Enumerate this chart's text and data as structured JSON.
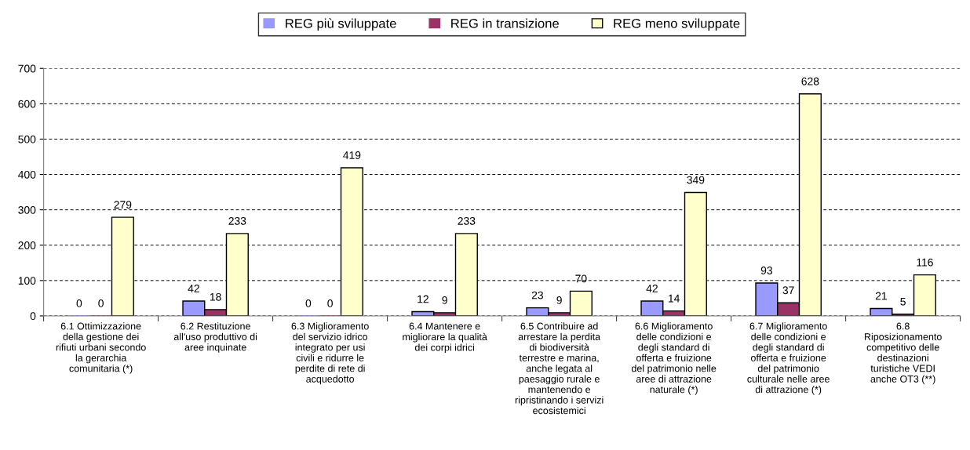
{
  "chart_data": {
    "type": "bar",
    "categories": [
      "6.1 Ottimizzazione\ndella gestione dei\nrifiuti urbani secondo\nla gerarchia\ncomunitaria (*)",
      "6.2 Restituzione\nall'uso produttivo di\naree inquinate",
      "6.3 Miglioramento\ndel servizio idrico\nintegrato per usi\ncivili e ridurre le\nperdite di rete di\nacquedotto",
      "6.4 Mantenere e\nmigliorare la qualità\ndei corpi idrici",
      "6.5 Contribuire ad\narrestare la perdita\ndi biodiversità\nterrestre e marina,\nanche legata al\npaesaggio rurale e\nmantenendo e\nripristinando i servizi\necosistemici",
      "6.6 Miglioramento\ndelle condizioni e\ndegli standard di\nofferta e fruizione\ndel patrimonio nelle\naree di attrazione\nnaturale (*)",
      "6.7 Miglioramento\ndelle condizioni e\ndegli standard di\nofferta e fruizione\ndel patrimonio\nculturale nelle aree\ndi attrazione (*)",
      "6.8\nRiposizionamento\ncompetitivo delle\ndestinazioni\nturistiche VEDI\nanche OT3 (**)"
    ],
    "series": [
      {
        "name": "REG più sviluppate",
        "color": "#9999ff",
        "values": [
          0,
          42,
          0,
          12,
          23,
          42,
          93,
          21
        ]
      },
      {
        "name": "REG in transizione",
        "color": "#993366",
        "values": [
          0,
          18,
          0,
          9,
          9,
          14,
          37,
          5
        ]
      },
      {
        "name": "REG meno sviluppate",
        "color": "#ffffcc",
        "values": [
          279,
          233,
          419,
          233,
          70,
          349,
          628,
          116
        ]
      }
    ],
    "ylim": [
      0,
      700
    ],
    "yticks": [
      0,
      100,
      200,
      300,
      400,
      500,
      600,
      700
    ],
    "grid": "y",
    "legend": "top",
    "data_labels": true
  }
}
